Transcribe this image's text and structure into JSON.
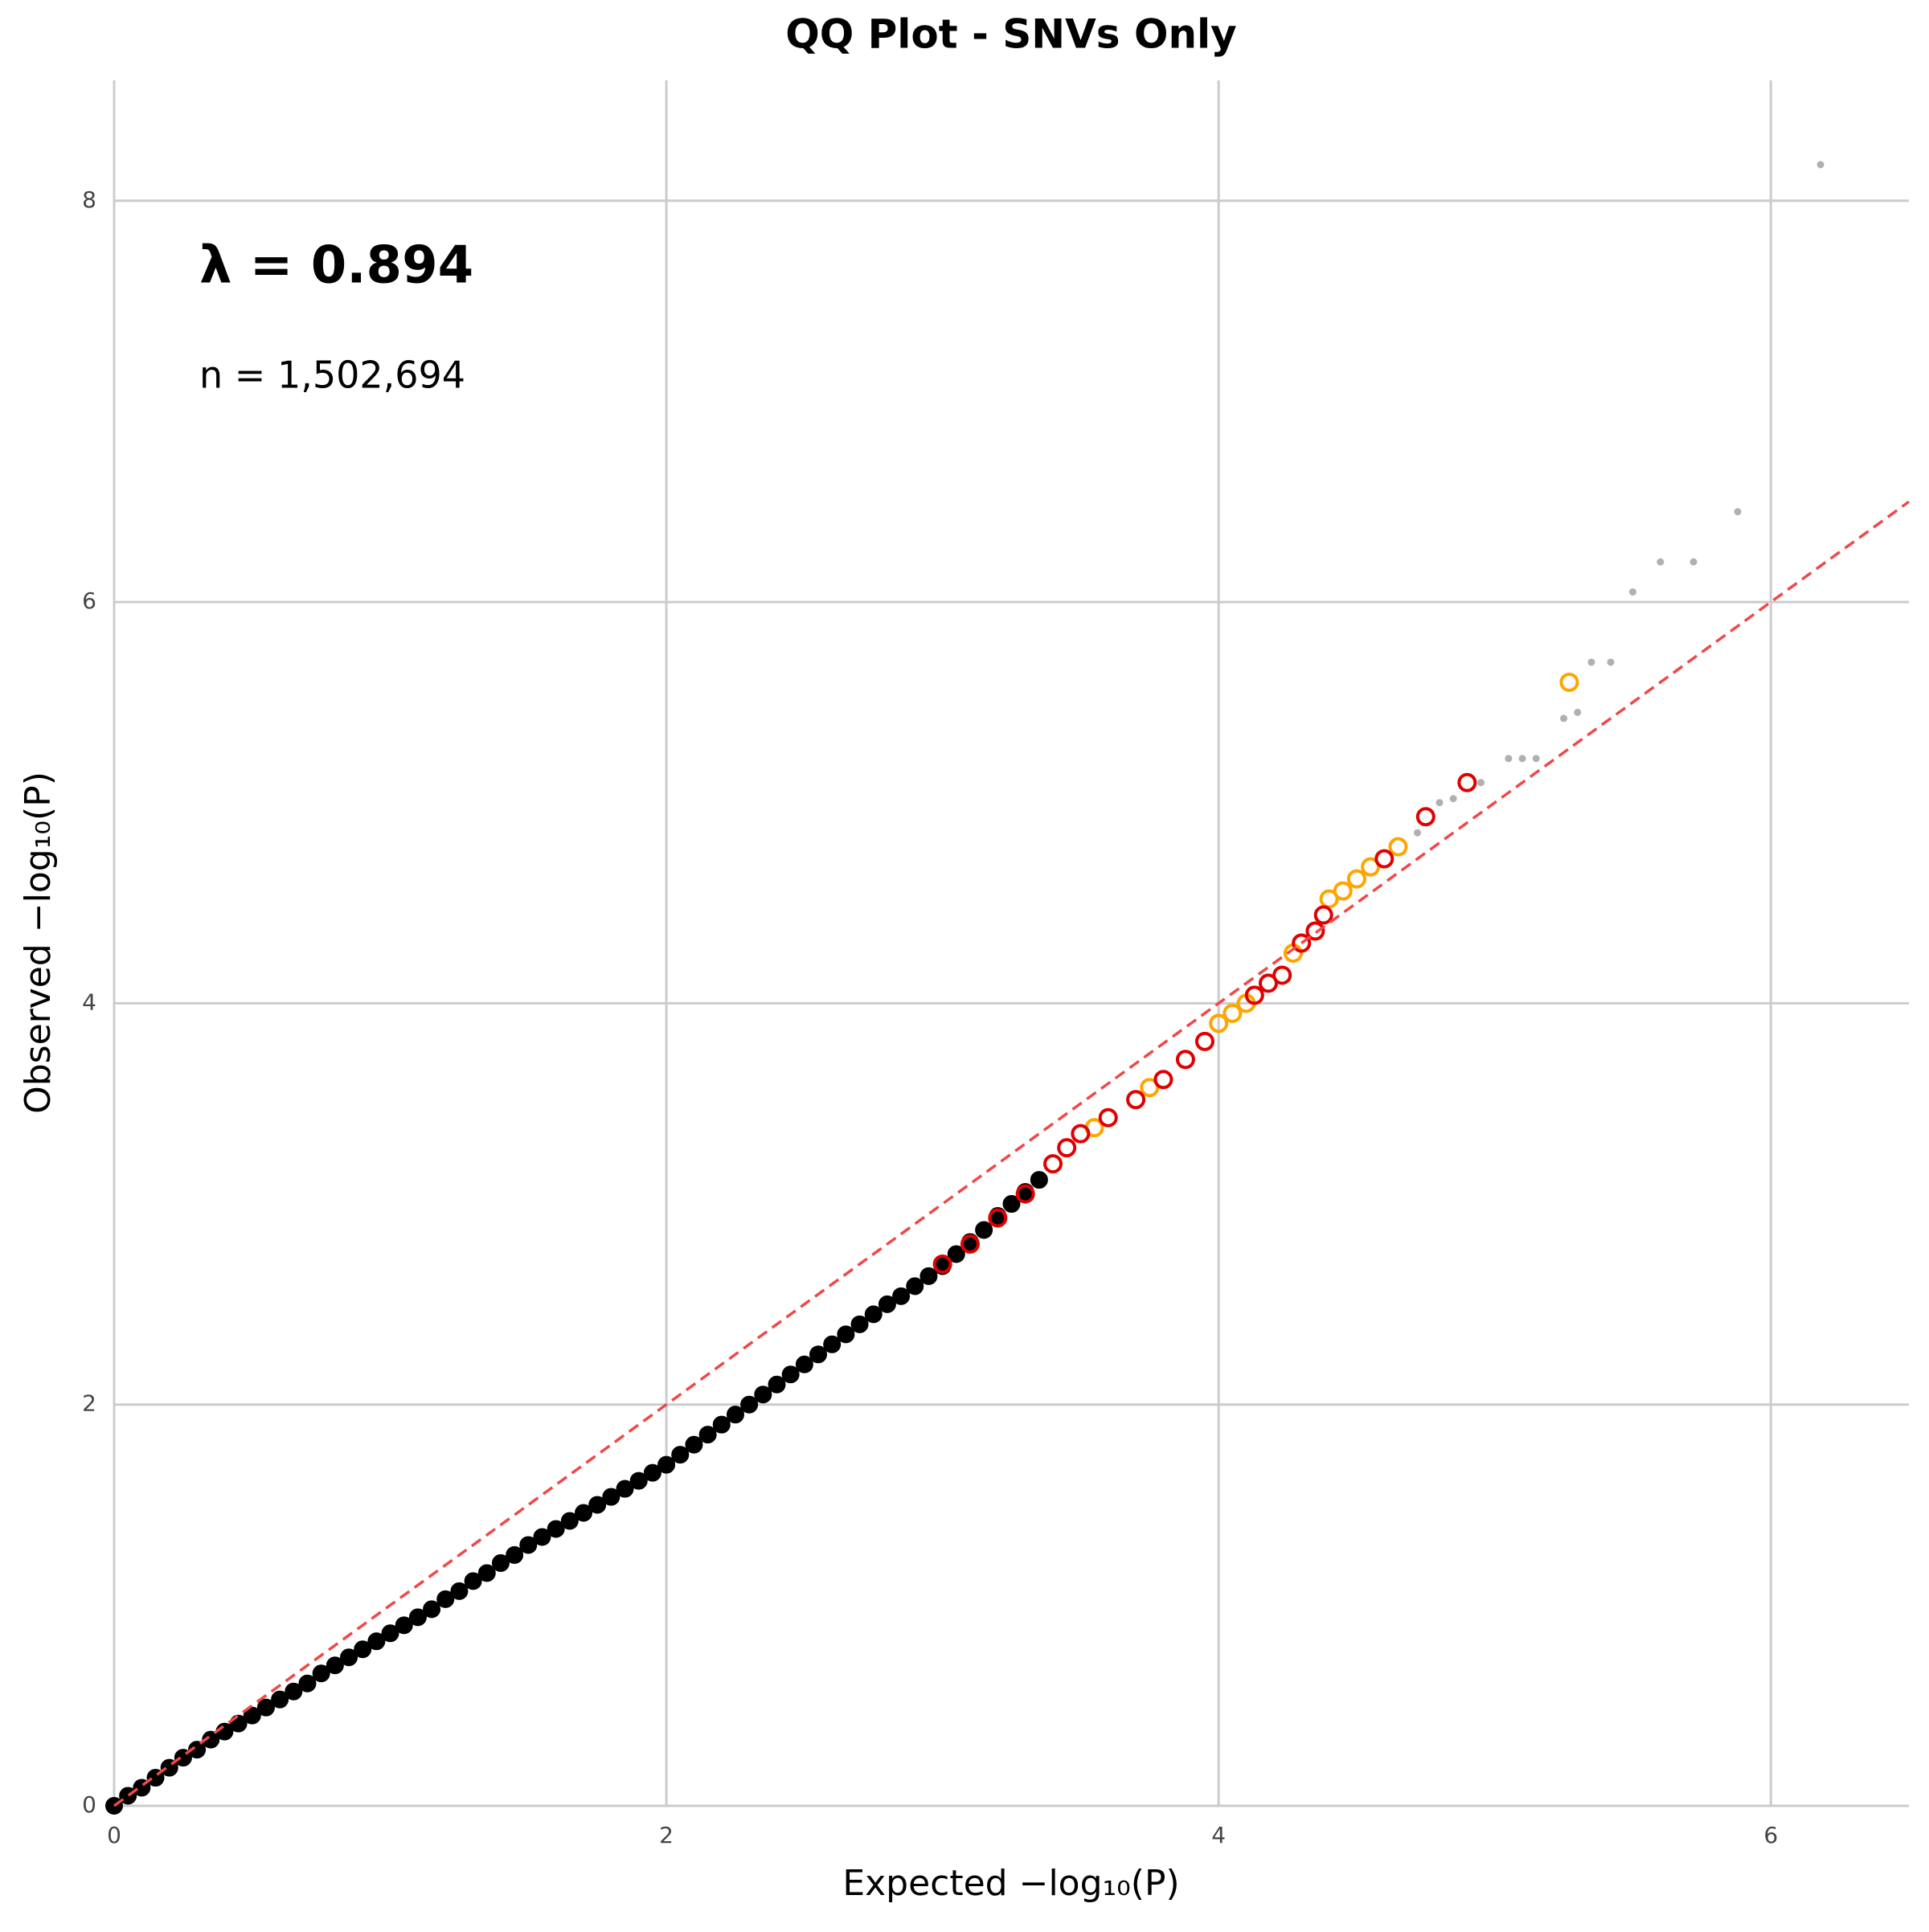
{
  "chart_data": {
    "type": "scatter",
    "title": "QQ Plot - SNVs Only",
    "x_label": "Expected −log₁₀(P)",
    "y_label": "Observed −log₁₀(P)",
    "annotations": [
      "λ = 0.894",
      "n = 1,502,694"
    ],
    "xlim": [
      0,
      6.5
    ],
    "ylim": [
      0,
      8.6
    ],
    "xticks": [
      0,
      2,
      4,
      6
    ],
    "yticks": [
      0,
      2,
      4,
      6,
      8
    ],
    "grid": true,
    "diagonal": true,
    "diagonal_color": "#f04848",
    "series": [
      {
        "color": "#000000",
        "marker": "filled",
        "x": [
          0,
          0.05,
          0.1,
          0.15,
          0.2,
          0.25,
          0.3,
          0.35,
          0.4,
          0.45,
          0.5,
          0.55,
          0.6,
          0.65,
          0.7,
          0.75,
          0.8,
          0.85,
          0.9,
          0.95,
          1.0,
          1.05,
          1.1,
          1.15,
          1.2,
          1.25,
          1.3,
          1.35,
          1.4,
          1.45,
          1.5,
          1.55,
          1.6,
          1.65,
          1.7,
          1.75,
          1.8,
          1.85,
          1.9,
          1.95,
          2.0,
          2.05,
          2.1,
          2.15,
          2.2,
          2.25,
          2.3,
          2.35,
          2.4,
          2.45,
          2.5,
          2.55,
          2.6,
          2.65,
          2.7,
          2.75,
          2.8,
          2.85,
          2.9,
          2.95,
          3.0,
          3.05,
          3.1,
          3.15,
          3.2,
          3.25,
          3.3,
          3.35
        ],
        "values": [
          0,
          0.05,
          0.09,
          0.14,
          0.19,
          0.24,
          0.28,
          0.33,
          0.37,
          0.41,
          0.45,
          0.49,
          0.53,
          0.57,
          0.61,
          0.66,
          0.7,
          0.74,
          0.78,
          0.82,
          0.86,
          0.9,
          0.94,
          0.98,
          1.03,
          1.07,
          1.12,
          1.16,
          1.21,
          1.25,
          1.3,
          1.34,
          1.38,
          1.42,
          1.46,
          1.5,
          1.54,
          1.58,
          1.62,
          1.66,
          1.7,
          1.75,
          1.8,
          1.85,
          1.9,
          1.95,
          2.0,
          2.05,
          2.1,
          2.15,
          2.2,
          2.25,
          2.3,
          2.35,
          2.4,
          2.45,
          2.5,
          2.54,
          2.59,
          2.64,
          2.69,
          2.75,
          2.81,
          2.87,
          2.94,
          3.0,
          3.06,
          3.12
        ]
      },
      {
        "color": "#ffa500",
        "marker": "ring",
        "x": [
          3.55,
          3.75,
          4.0,
          4.05,
          4.1,
          4.27,
          4.4,
          4.45,
          4.5,
          4.55,
          4.65,
          5.27
        ],
        "values": [
          3.38,
          3.58,
          3.9,
          3.95,
          4.0,
          4.25,
          4.52,
          4.56,
          4.62,
          4.68,
          4.78,
          5.6
        ]
      },
      {
        "color": "#e00000",
        "marker": "ring",
        "x": [
          3.0,
          3.1,
          3.2,
          3.3,
          3.4,
          3.45,
          3.5,
          3.6,
          3.7,
          3.8,
          3.88,
          3.95,
          4.13,
          4.18,
          4.23,
          4.3,
          4.35,
          4.38,
          4.6,
          4.75,
          4.9
        ],
        "values": [
          2.7,
          2.8,
          2.93,
          3.05,
          3.2,
          3.28,
          3.35,
          3.43,
          3.52,
          3.62,
          3.72,
          3.81,
          4.04,
          4.1,
          4.14,
          4.3,
          4.36,
          4.44,
          4.72,
          4.93,
          5.1
        ]
      },
      {
        "color": "#b0b0b0",
        "marker": "dot",
        "x": [
          4.72,
          4.8,
          4.85,
          4.95,
          5.05,
          5.1,
          5.15,
          5.25,
          5.3,
          5.35,
          5.42,
          5.5,
          5.6,
          5.72,
          5.88,
          6.18
        ],
        "values": [
          4.85,
          5.0,
          5.02,
          5.1,
          5.22,
          5.22,
          5.22,
          5.42,
          5.45,
          5.7,
          5.7,
          6.05,
          6.2,
          6.2,
          6.45,
          8.18
        ]
      }
    ]
  }
}
